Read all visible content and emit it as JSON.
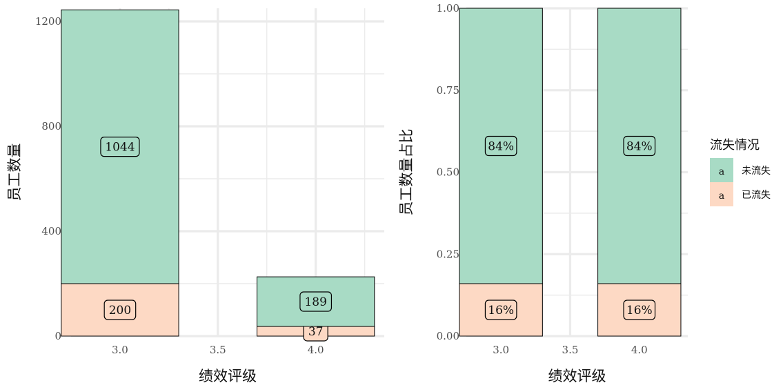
{
  "chart_data": [
    {
      "type": "bar",
      "stacked": true,
      "categories": [
        3.0,
        4.0
      ],
      "x_ticks": [
        "3.0",
        "3.5",
        "4.0"
      ],
      "xlim": [
        2.75,
        4.35
      ],
      "xlabel": "绩效评级",
      "ylabel": "员工数量",
      "ylim": [
        0,
        1250
      ],
      "y_ticks": [
        "0",
        "400",
        "800",
        "1200"
      ],
      "grid": true,
      "series": [
        {
          "name": "已流失",
          "values": [
            200,
            37
          ],
          "labels": [
            "200",
            "37"
          ]
        },
        {
          "name": "未流失",
          "values": [
            1044,
            189
          ],
          "labels": [
            "1044",
            "189"
          ]
        }
      ]
    },
    {
      "type": "bar",
      "stacked": true,
      "categories": [
        3.0,
        4.0
      ],
      "x_ticks": [
        "3.0",
        "3.5",
        "4.0"
      ],
      "xlim": [
        2.75,
        4.35
      ],
      "xlabel": "绩效评级",
      "ylabel": "员工数量占比",
      "ylim": [
        0,
        1
      ],
      "y_ticks": [
        "0.00",
        "0.25",
        "0.50",
        "0.75",
        "1.00"
      ],
      "grid": true,
      "series": [
        {
          "name": "已流失",
          "values": [
            0.16,
            0.16
          ],
          "labels": [
            "16%",
            "16%"
          ]
        },
        {
          "name": "未流失",
          "values": [
            0.84,
            0.84
          ],
          "labels": [
            "84%",
            "84%"
          ]
        }
      ]
    }
  ],
  "legend": {
    "title": "流失情况",
    "placement": "right",
    "key_glyph": "a",
    "items": [
      {
        "label": "未流失",
        "color": "#a8dbc5"
      },
      {
        "label": "已流失",
        "color": "#fdd9c4"
      }
    ]
  },
  "colors": {
    "已流失": "#fdd9c4",
    "未流失": "#a8dbc5",
    "grid": "#ebebeb",
    "bar_outline": "#000000"
  }
}
